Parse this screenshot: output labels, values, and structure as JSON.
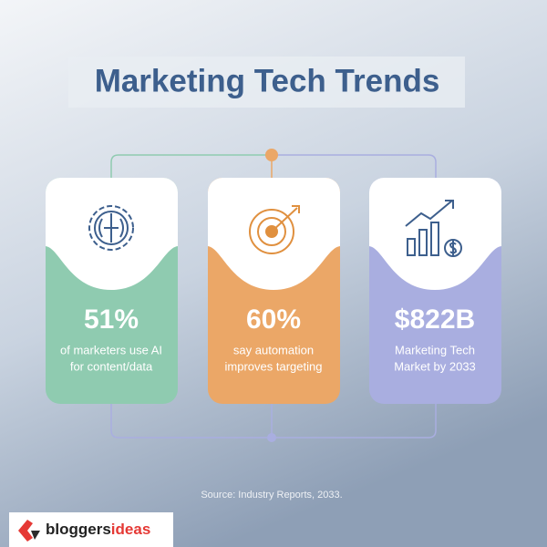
{
  "header": {
    "title": "Marketing Tech Trends"
  },
  "cards": [
    {
      "stat": "51%",
      "lines": [
        "of marketers use AI",
        "for content/data"
      ]
    },
    {
      "stat": "60%",
      "lines": [
        "say automation",
        "improves targeting"
      ]
    },
    {
      "stat": "$822B",
      "lines": [
        "Marketing Tech",
        "Market by 2033"
      ]
    }
  ],
  "footer": {
    "source": "Source: Industry Reports, 2033."
  },
  "logo": {
    "part1": "bloggers",
    "part2": "ideas"
  }
}
